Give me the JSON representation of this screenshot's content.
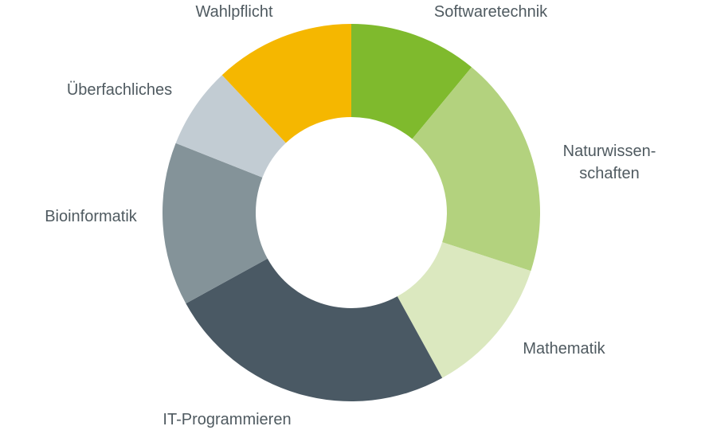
{
  "chart_data": {
    "type": "donut",
    "categories": [
      "Softwaretechnik",
      "Naturwissen-\nschaften",
      "Mathematik",
      "IT-Programmieren",
      "Bioinformatik",
      "Überfachliches",
      "Wahlpflicht"
    ],
    "values": [
      11,
      19,
      12,
      25,
      14,
      7,
      12
    ],
    "colors": [
      "#7fba2d",
      "#b3d27e",
      "#dbe8bf",
      "#4a5964",
      "#849399",
      "#c2ccd3",
      "#f5b700"
    ]
  }
}
